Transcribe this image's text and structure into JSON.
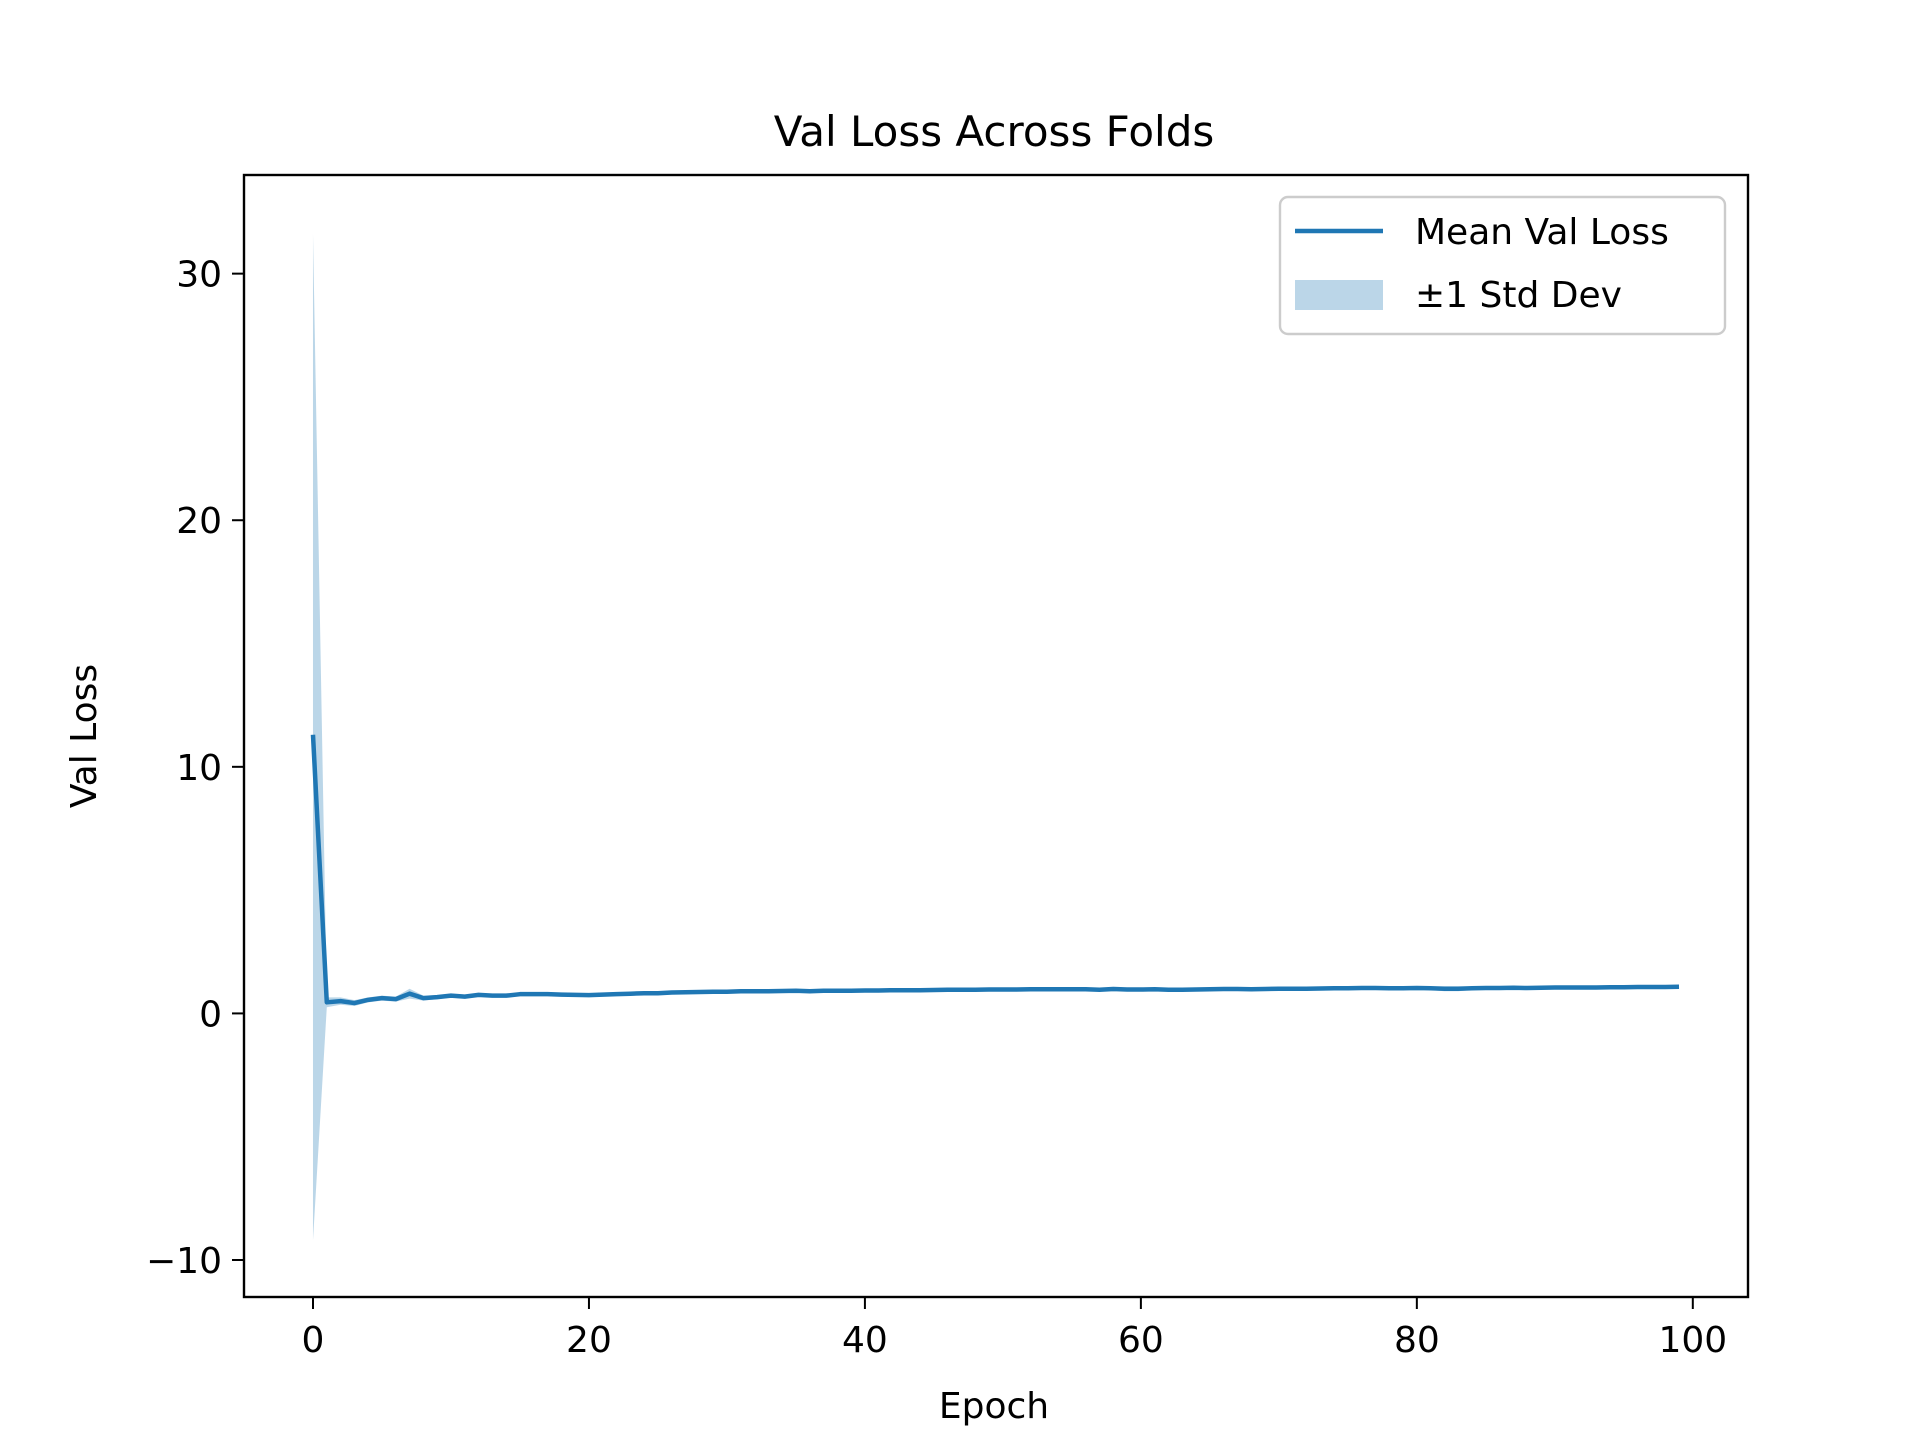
{
  "chart_data": {
    "type": "line",
    "title": "Val Loss Across Folds",
    "xlabel": "Epoch",
    "ylabel": "Val Loss",
    "xlim": [
      -5,
      104
    ],
    "ylim": [
      -11.5,
      34
    ],
    "xticks": [
      0,
      20,
      40,
      60,
      80,
      100
    ],
    "yticks": [
      -10,
      0,
      10,
      20,
      30
    ],
    "xtick_labels": [
      "0",
      "20",
      "40",
      "60",
      "80",
      "100"
    ],
    "ytick_labels": [
      "−10",
      "0",
      "10",
      "20",
      "30"
    ],
    "grid": false,
    "legend_position": "top-right",
    "legend": {
      "line_label": "Mean Val Loss",
      "band_label": "±1 Std Dev"
    },
    "colors": {
      "line": "#1f77b4",
      "band": "#1f77b4"
    },
    "series": [
      {
        "name": "Mean Val Loss",
        "x": [
          0,
          1,
          2,
          3,
          4,
          5,
          6,
          7,
          8,
          9,
          10,
          11,
          12,
          13,
          14,
          15,
          16,
          17,
          18,
          19,
          20,
          21,
          22,
          23,
          24,
          25,
          26,
          27,
          28,
          29,
          30,
          31,
          32,
          33,
          34,
          35,
          36,
          37,
          38,
          39,
          40,
          41,
          42,
          43,
          44,
          45,
          46,
          47,
          48,
          49,
          50,
          51,
          52,
          53,
          54,
          55,
          56,
          57,
          58,
          59,
          60,
          61,
          62,
          63,
          64,
          65,
          66,
          67,
          68,
          69,
          70,
          71,
          72,
          73,
          74,
          75,
          76,
          77,
          78,
          79,
          80,
          81,
          82,
          83,
          84,
          85,
          86,
          87,
          88,
          89,
          90,
          91,
          92,
          93,
          94,
          95,
          96,
          97,
          98,
          99
        ],
        "y": [
          11.3,
          0.45,
          0.5,
          0.42,
          0.55,
          0.62,
          0.58,
          0.8,
          0.62,
          0.66,
          0.72,
          0.68,
          0.75,
          0.72,
          0.72,
          0.78,
          0.78,
          0.78,
          0.76,
          0.75,
          0.74,
          0.76,
          0.78,
          0.8,
          0.82,
          0.82,
          0.85,
          0.86,
          0.87,
          0.88,
          0.88,
          0.9,
          0.9,
          0.9,
          0.91,
          0.92,
          0.9,
          0.92,
          0.92,
          0.92,
          0.93,
          0.93,
          0.94,
          0.94,
          0.94,
          0.95,
          0.96,
          0.96,
          0.96,
          0.97,
          0.97,
          0.97,
          0.98,
          0.98,
          0.98,
          0.98,
          0.98,
          0.96,
          0.99,
          0.97,
          0.97,
          0.98,
          0.96,
          0.96,
          0.97,
          0.98,
          0.99,
          0.99,
          0.98,
          0.99,
          1.0,
          1.0,
          1.0,
          1.01,
          1.02,
          1.02,
          1.03,
          1.03,
          1.02,
          1.02,
          1.03,
          1.02,
          1.0,
          1.0,
          1.02,
          1.03,
          1.03,
          1.04,
          1.03,
          1.04,
          1.05,
          1.05,
          1.05,
          1.05,
          1.06,
          1.06,
          1.07,
          1.07,
          1.07,
          1.08
        ]
      },
      {
        "name": "±1 Std Dev",
        "lower": [
          -9.2,
          0.25,
          0.35,
          0.3,
          0.45,
          0.52,
          0.48,
          0.6,
          0.52,
          0.58,
          0.64,
          0.6,
          0.68,
          0.65,
          0.65,
          0.72,
          0.72,
          0.72,
          0.7,
          0.69,
          0.68,
          0.7,
          0.72,
          0.74,
          0.76,
          0.76,
          0.8,
          0.81,
          0.82,
          0.83,
          0.83,
          0.85,
          0.85,
          0.85,
          0.86,
          0.87,
          0.85,
          0.87,
          0.87,
          0.87,
          0.88,
          0.88,
          0.89,
          0.89,
          0.89,
          0.9,
          0.91,
          0.91,
          0.91,
          0.92,
          0.92,
          0.92,
          0.93,
          0.93,
          0.93,
          0.93,
          0.93,
          0.91,
          0.94,
          0.92,
          0.92,
          0.93,
          0.9,
          0.9,
          0.91,
          0.93,
          0.94,
          0.94,
          0.93,
          0.94,
          0.95,
          0.95,
          0.95,
          0.96,
          0.97,
          0.97,
          0.98,
          0.98,
          0.97,
          0.97,
          0.97,
          0.95,
          0.9,
          0.9,
          0.95,
          0.97,
          0.97,
          0.98,
          0.97,
          0.98,
          0.99,
          0.99,
          0.99,
          0.99,
          1.0,
          1.0,
          1.01,
          1.01,
          1.01,
          1.02
        ],
        "upper": [
          31.6,
          0.65,
          0.65,
          0.54,
          0.65,
          0.72,
          0.68,
          1.0,
          0.72,
          0.74,
          0.8,
          0.76,
          0.82,
          0.79,
          0.79,
          0.84,
          0.84,
          0.84,
          0.82,
          0.81,
          0.8,
          0.82,
          0.84,
          0.86,
          0.88,
          0.88,
          0.9,
          0.91,
          0.92,
          0.93,
          0.93,
          0.95,
          0.95,
          0.95,
          0.96,
          0.97,
          0.95,
          0.97,
          0.97,
          0.97,
          0.98,
          0.98,
          0.99,
          0.99,
          0.99,
          1.0,
          1.01,
          1.01,
          1.01,
          1.02,
          1.02,
          1.02,
          1.03,
          1.03,
          1.03,
          1.03,
          1.03,
          1.01,
          1.04,
          1.02,
          1.02,
          1.03,
          1.02,
          1.02,
          1.03,
          1.03,
          1.04,
          1.04,
          1.03,
          1.04,
          1.05,
          1.05,
          1.05,
          1.06,
          1.07,
          1.07,
          1.08,
          1.08,
          1.07,
          1.07,
          1.09,
          1.09,
          1.1,
          1.1,
          1.09,
          1.09,
          1.09,
          1.1,
          1.09,
          1.1,
          1.11,
          1.11,
          1.11,
          1.11,
          1.12,
          1.12,
          1.13,
          1.13,
          1.13,
          1.14
        ]
      }
    ]
  }
}
